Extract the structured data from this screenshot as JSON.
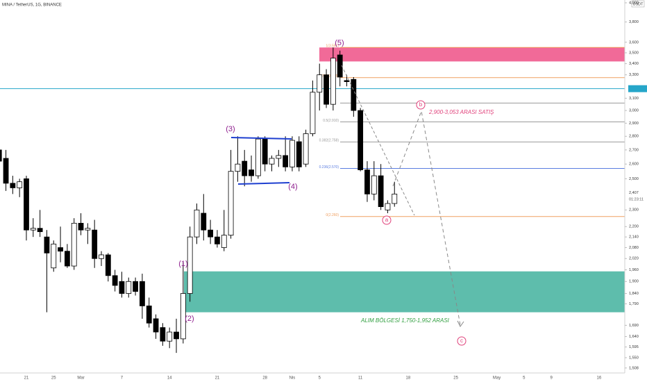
{
  "chart_data": {
    "type": "candlestick",
    "title": "MINA / TetherUS, 1G, BINANCE",
    "currency": "USDT",
    "categories": [
      null,
      null,
      null,
      null,
      "21",
      null,
      null,
      null,
      "25",
      null,
      null,
      null,
      "Mar",
      null,
      null,
      null,
      null,
      null,
      "7",
      null,
      null,
      null,
      null,
      null,
      null,
      "14",
      null,
      null,
      null,
      null,
      null,
      null,
      "21",
      null,
      null,
      null,
      null,
      null,
      null,
      "28",
      null,
      null,
      null,
      "Nis",
      null,
      null,
      null,
      "5",
      null,
      null,
      null,
      null,
      null,
      "11",
      null,
      null,
      null,
      null,
      null,
      null,
      "18",
      null,
      null,
      null,
      null,
      null,
      null,
      "25",
      null,
      null,
      null,
      null,
      null,
      "May",
      null,
      null,
      null,
      "5",
      null,
      null,
      null,
      "9",
      null,
      null,
      null,
      null,
      null,
      null,
      "16",
      null,
      null
    ],
    "open": [
      2.7,
      2.64,
      2.47,
      2.44,
      2.5,
      2.18,
      2.19,
      2.14,
      1.97,
      2.08,
      2.06,
      1.98,
      2.22,
      2.18,
      2.18,
      2.02,
      2.04,
      1.93,
      1.9,
      1.84,
      1.9,
      1.9,
      1.78,
      1.72,
      1.68,
      1.62,
      1.66,
      1.63,
      1.84,
      2.14,
      2.28,
      2.18,
      2.14,
      2.08,
      2.15,
      2.55,
      2.62,
      2.56,
      2.52,
      2.78,
      2.6,
      2.64,
      2.66,
      2.58,
      2.76,
      2.6,
      2.82,
      3.15,
      3.3,
      3.05,
      3.48,
      3.25,
      3.26,
      3.0,
      2.56,
      2.4,
      2.52,
      2.3,
      2.34,
      null,
      null,
      null,
      null,
      null,
      null,
      null,
      null,
      null,
      null,
      null,
      null,
      null,
      null,
      null,
      null,
      null,
      null,
      null,
      null,
      null,
      null,
      null,
      null,
      null,
      null,
      null,
      null,
      null,
      null,
      null,
      null
    ],
    "high": [
      2.9,
      2.7,
      2.52,
      2.5,
      2.52,
      2.25,
      2.3,
      2.18,
      2.12,
      2.2,
      2.1,
      2.25,
      2.28,
      2.22,
      2.24,
      2.06,
      2.05,
      1.96,
      1.95,
      1.92,
      1.92,
      1.94,
      1.82,
      1.74,
      1.7,
      1.68,
      1.72,
      2.0,
      2.2,
      2.34,
      2.4,
      2.24,
      2.18,
      2.3,
      2.7,
      2.8,
      2.7,
      2.66,
      2.8,
      2.8,
      2.66,
      2.7,
      2.8,
      2.8,
      2.8,
      2.85,
      3.25,
      3.4,
      3.35,
      3.55,
      3.52,
      3.3,
      3.28,
      3.02,
      2.62,
      2.62,
      2.6,
      2.36,
      2.48,
      null,
      null,
      null,
      null,
      null,
      null,
      null,
      null,
      null,
      null,
      null,
      null,
      null,
      null,
      null,
      null,
      null,
      null,
      null,
      null,
      null,
      null,
      null,
      null,
      null,
      null,
      null,
      null,
      null,
      null,
      null,
      null
    ],
    "low": [
      2.55,
      2.42,
      2.4,
      2.38,
      2.12,
      2.14,
      2.14,
      1.75,
      1.95,
      2.0,
      1.97,
      1.96,
      2.15,
      2.1,
      1.97,
      1.98,
      1.9,
      1.85,
      1.82,
      1.82,
      1.83,
      1.72,
      1.68,
      1.63,
      1.6,
      1.59,
      1.57,
      1.61,
      1.8,
      2.1,
      2.12,
      2.1,
      2.08,
      2.06,
      2.13,
      2.48,
      2.45,
      2.48,
      2.5,
      2.55,
      2.55,
      2.58,
      2.55,
      2.55,
      2.55,
      2.58,
      2.8,
      3.0,
      3.02,
      3.0,
      3.2,
      3.2,
      2.95,
      2.55,
      2.35,
      2.36,
      2.3,
      2.28,
      2.32,
      null,
      null,
      null,
      null,
      null,
      null,
      null,
      null,
      null,
      null,
      null,
      null,
      null,
      null,
      null,
      null,
      null,
      null,
      null,
      null,
      null,
      null,
      null,
      null,
      null,
      null,
      null,
      null,
      null,
      null,
      null,
      null
    ],
    "close": [
      2.62,
      2.47,
      2.44,
      2.48,
      2.18,
      2.19,
      2.17,
      2.05,
      2.1,
      2.06,
      1.98,
      2.22,
      2.18,
      2.19,
      2.02,
      2.04,
      1.93,
      1.88,
      1.84,
      1.9,
      1.85,
      1.78,
      1.7,
      1.66,
      1.62,
      1.66,
      1.63,
      1.84,
      2.14,
      2.3,
      2.18,
      2.14,
      2.1,
      2.15,
      2.55,
      2.6,
      2.52,
      2.52,
      2.78,
      2.6,
      2.64,
      2.66,
      2.58,
      2.77,
      2.58,
      2.82,
      3.15,
      3.3,
      3.05,
      3.45,
      3.28,
      3.24,
      3.0,
      2.56,
      2.4,
      2.52,
      2.32,
      2.34,
      2.4,
      null,
      null,
      null,
      null,
      null,
      null,
      null,
      null,
      null,
      null,
      null,
      null,
      null,
      null,
      null,
      null,
      null,
      null,
      null,
      null,
      null,
      null,
      null,
      null,
      null,
      null,
      null,
      null,
      null,
      null,
      null,
      null
    ],
    "up_color": "#ffffff",
    "down_color": "#000000",
    "log_scale": true,
    "ylim": [
      1.488,
      4.03
    ],
    "yticks": [
      {
        "value": 4.0,
        "label": "4,000"
      },
      {
        "value": 3.8,
        "label": "3,800"
      },
      {
        "value": 3.6,
        "label": "3,600"
      },
      {
        "value": 3.5,
        "label": "3,500"
      },
      {
        "value": 3.4,
        "label": "3,400"
      },
      {
        "value": 3.3,
        "label": "3,300"
      },
      {
        "value": 3.1,
        "label": "3,100"
      },
      {
        "value": 3.0,
        "label": "3,000"
      },
      {
        "value": 2.9,
        "label": "2,900"
      },
      {
        "value": 2.8,
        "label": "2,800"
      },
      {
        "value": 2.7,
        "label": "2,700"
      },
      {
        "value": 2.6,
        "label": "2,600"
      },
      {
        "value": 2.5,
        "label": "2,500"
      },
      {
        "value": 2.3,
        "label": "2,300"
      },
      {
        "value": 2.2,
        "label": "2,200"
      },
      {
        "value": 2.14,
        "label": "2,140"
      },
      {
        "value": 2.08,
        "label": "2,080"
      },
      {
        "value": 2.02,
        "label": "2,020"
      },
      {
        "value": 1.96,
        "label": "1,960"
      },
      {
        "value": 1.9,
        "label": "1,900"
      },
      {
        "value": 1.84,
        "label": "1,840"
      },
      {
        "value": 1.79,
        "label": "1,790"
      },
      {
        "value": 1.69,
        "label": "1,690"
      },
      {
        "value": 1.64,
        "label": "1,640"
      },
      {
        "value": 1.595,
        "label": "1,595"
      },
      {
        "value": 1.55,
        "label": "1,550"
      },
      {
        "value": 1.508,
        "label": "1,508"
      }
    ],
    "last_price": {
      "value": 2.407,
      "label": "2,407"
    },
    "countdown": "01:23:11",
    "price_line": {
      "value": 3.18,
      "color": "#26a6c9"
    },
    "zones": [
      {
        "low": 3.42,
        "high": 3.55,
        "color": "#f06292"
      },
      {
        "low": 1.75,
        "high": 1.952,
        "color": "#4db6a3"
      }
    ],
    "fib_levels": [
      {
        "value": 3.551,
        "label": "1(3.551)",
        "color": "#f0a060"
      },
      {
        "value": 3.275,
        "label": "0.786(3.275)",
        "color": "#f0a060"
      },
      {
        "value": 3.06,
        "label": null,
        "color": "#999999"
      },
      {
        "value": 2.91,
        "label": "0.5(2.910)",
        "color": "#999999"
      },
      {
        "value": 2.758,
        "label": "0.382(2.758)",
        "color": "#999999"
      },
      {
        "value": 2.57,
        "label": "0.236(2.570)",
        "color": "#5a7ce0"
      },
      {
        "value": 2.26,
        "label": "0(2.260)",
        "color": "#f0a060"
      }
    ],
    "annotations": {
      "waves": [
        "(1)",
        "(2)",
        "(3)",
        "(4)",
        "(5)"
      ],
      "abc": [
        "a",
        "b",
        "c"
      ],
      "sell": "2,900-3,053 ARASI SATIŞ",
      "buy": "ALIM BÖLGESİ 1,750-1,952 ARASI"
    }
  }
}
